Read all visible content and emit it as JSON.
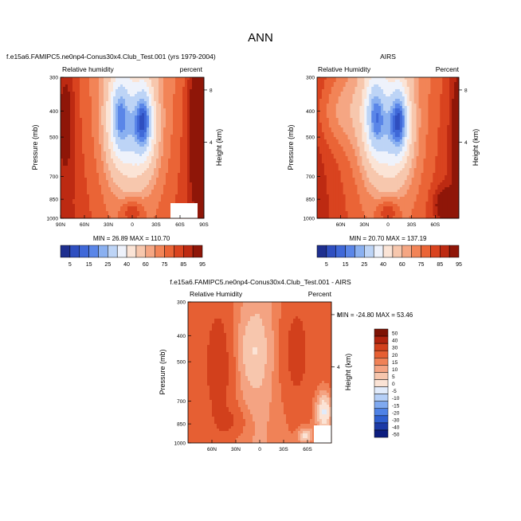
{
  "figure_title": "ANN",
  "colors": {
    "rh_palette": [
      "#1e2f8f",
      "#2f4fc0",
      "#3f68d8",
      "#5a86e8",
      "#8ab0f0",
      "#bdd4f6",
      "#eef2fb",
      "#fbe4d6",
      "#f7c7ad",
      "#f5a683",
      "#f28457",
      "#ea6436",
      "#d9431f",
      "#bd2a12",
      "#8f1608"
    ],
    "diff_palette": [
      "#0c1d7f",
      "#1c3aa6",
      "#2f5fd0",
      "#4f82e6",
      "#7fa9f0",
      "#b5cff7",
      "#e1ebfb",
      "#fbe3d5",
      "#f7c6ad",
      "#f4a382",
      "#f08257",
      "#e65f33",
      "#d2401c",
      "#b0230e",
      "#7d1204"
    ]
  },
  "chart_data": [
    {
      "type": "heatmap",
      "title_left": "f.e15a6.FAMIPC5.ne0np4-Conus30x4.Club_Test.001 (yrs 1979-2004)",
      "title_sub_left": "Relative humidity",
      "title_sub_right": "percent",
      "xlabel": "",
      "ylabel": "Pressure (mb)",
      "right_label": "Height (km)",
      "x_ticks": [
        "90N",
        "60N",
        "30N",
        "0",
        "30S",
        "60S",
        "90S"
      ],
      "y_ticks": [
        "300",
        "400",
        "500",
        "700",
        "850",
        "1000"
      ],
      "y_values": [
        300,
        400,
        500,
        700,
        850,
        1000
      ],
      "height_ticks": [
        "8",
        "4"
      ],
      "min_max_text": "MIN =  26.89   MAX = 110.70",
      "min": 26.89,
      "max": 110.7
    },
    {
      "type": "heatmap",
      "title_center": "AIRS",
      "title_sub_left": "Relative Humidity",
      "title_sub_right": "Percent",
      "ylabel": "Pressure (mb)",
      "right_label": "Height (km)",
      "x_ticks": [
        "60N",
        "30N",
        "0",
        "30S",
        "60S"
      ],
      "y_ticks": [
        "300",
        "400",
        "500",
        "700",
        "850",
        "1000"
      ],
      "y_values": [
        300,
        400,
        500,
        700,
        850,
        1000
      ],
      "height_ticks": [
        "8",
        "4"
      ],
      "min_max_text": "MIN =  20.70   MAX = 137.19",
      "min": 20.7,
      "max": 137.19
    },
    {
      "type": "heatmap",
      "title_center": "f.e15a6.FAMIPC5.ne0np4-Conus30x4.Club_Test.001 - AIRS",
      "title_sub_left": "Relative Humidity",
      "title_sub_right": "Percent",
      "ylabel": "Pressure (mb)",
      "right_label": "Height (km)",
      "x_ticks": [
        "60N",
        "30N",
        "0",
        "30S",
        "60S"
      ],
      "y_ticks": [
        "300",
        "400",
        "500",
        "700",
        "850",
        "1000"
      ],
      "y_values": [
        300,
        400,
        500,
        700,
        850,
        1000
      ],
      "height_ticks": [
        "8",
        "4"
      ],
      "min_max_text": "MIN = -24.80   MAX =  53.46",
      "min": -24.8,
      "max": 53.46
    }
  ],
  "rh_colorbar": {
    "labels": [
      "5",
      "15",
      "25",
      "40",
      "60",
      "75",
      "85",
      "95"
    ],
    "levels": [
      5,
      10,
      15,
      20,
      25,
      30,
      40,
      50,
      60,
      70,
      75,
      80,
      85,
      90,
      95
    ]
  },
  "diff_colorbar": {
    "labels": [
      "50",
      "40",
      "30",
      "20",
      "15",
      "10",
      "5",
      "0",
      "-5",
      "-10",
      "-15",
      "-20",
      "-30",
      "-40",
      "-50"
    ]
  }
}
